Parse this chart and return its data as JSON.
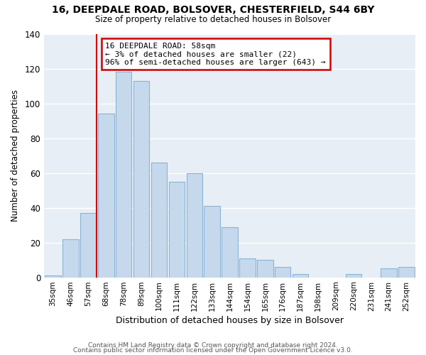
{
  "title": "16, DEEPDALE ROAD, BOLSOVER, CHESTERFIELD, S44 6BY",
  "subtitle": "Size of property relative to detached houses in Bolsover",
  "xlabel": "Distribution of detached houses by size in Bolsover",
  "ylabel": "Number of detached properties",
  "categories": [
    "35sqm",
    "46sqm",
    "57sqm",
    "68sqm",
    "78sqm",
    "89sqm",
    "100sqm",
    "111sqm",
    "122sqm",
    "133sqm",
    "144sqm",
    "154sqm",
    "165sqm",
    "176sqm",
    "187sqm",
    "198sqm",
    "209sqm",
    "220sqm",
    "231sqm",
    "241sqm",
    "252sqm"
  ],
  "values": [
    1,
    22,
    37,
    94,
    118,
    113,
    66,
    55,
    60,
    41,
    29,
    11,
    10,
    6,
    2,
    0,
    0,
    2,
    0,
    5,
    6
  ],
  "bar_color": "#c6d9ec",
  "bar_edge_color": "#8ab4d4",
  "annotation_title": "16 DEEPDALE ROAD: 58sqm",
  "annotation_line1": "← 3% of detached houses are smaller (22)",
  "annotation_line2": "96% of semi-detached houses are larger (643) →",
  "annotation_box_color": "#ffffff",
  "annotation_box_edge": "#cc0000",
  "red_line_color": "#cc0000",
  "ylim": [
    0,
    140
  ],
  "yticks": [
    0,
    20,
    40,
    60,
    80,
    100,
    120,
    140
  ],
  "footer1": "Contains HM Land Registry data © Crown copyright and database right 2024.",
  "footer2": "Contains public sector information licensed under the Open Government Licence v3.0.",
  "background_color": "#ffffff",
  "plot_bg_color": "#e8eef5",
  "grid_color": "#ffffff"
}
